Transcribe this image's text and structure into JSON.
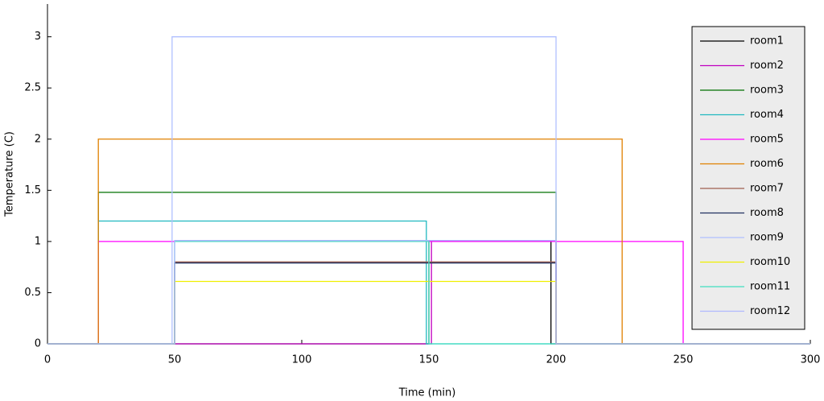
{
  "chart_data": {
    "type": "line",
    "xlabel": "Time (min)",
    "ylabel": "Temperature (C)",
    "xlim": [
      0,
      300
    ],
    "ylim": [
      0,
      3.32
    ],
    "xticks": [
      0,
      50,
      100,
      150,
      200,
      250,
      300
    ],
    "yticks": [
      0,
      0.5,
      1,
      1.5,
      2,
      2.5,
      3
    ],
    "grid": false,
    "legend": "upper right",
    "series": [
      {
        "name": "room1",
        "color": "#000000",
        "x": [
          0,
          150,
          150,
          198,
          198,
          300
        ],
        "values": [
          0,
          0,
          1,
          1,
          0,
          0
        ]
      },
      {
        "name": "room2",
        "color": "#c000c0",
        "x": [
          0,
          151,
          151,
          200,
          200,
          300
        ],
        "values": [
          0,
          0,
          1,
          1,
          0,
          0
        ]
      },
      {
        "name": "room3",
        "color": "#007000",
        "x": [
          0,
          20,
          20,
          200,
          200,
          300
        ],
        "values": [
          0,
          0,
          1.48,
          1.48,
          0,
          0
        ]
      },
      {
        "name": "room4",
        "color": "#20b8c0",
        "x": [
          0,
          20,
          20,
          149,
          149,
          300
        ],
        "values": [
          0,
          0,
          1.2,
          1.2,
          0,
          0
        ]
      },
      {
        "name": "room5",
        "color": "#ff00ff",
        "x": [
          0,
          20,
          20,
          250,
          250,
          300
        ],
        "values": [
          0,
          0,
          1,
          1,
          0,
          0
        ]
      },
      {
        "name": "room6",
        "color": "#e08000",
        "x": [
          0,
          20,
          20,
          226,
          226,
          300
        ],
        "values": [
          0,
          0,
          2,
          2,
          0,
          0
        ]
      },
      {
        "name": "room7",
        "color": "#a06050",
        "x": [
          0,
          50,
          50,
          200,
          200,
          300
        ],
        "values": [
          0,
          0,
          0.8,
          0.8,
          0,
          0
        ]
      },
      {
        "name": "room8",
        "color": "#203060",
        "x": [
          0,
          50,
          50,
          200,
          200,
          300
        ],
        "values": [
          0,
          0,
          0.79,
          0.79,
          0,
          0
        ]
      },
      {
        "name": "room9",
        "color": "#b0c0ff",
        "x": [
          0,
          49,
          49,
          200,
          200,
          300
        ],
        "values": [
          0,
          0,
          3,
          3,
          0,
          0
        ]
      },
      {
        "name": "room10",
        "color": "#f0f000",
        "x": [
          0,
          50,
          50,
          200,
          200,
          300
        ],
        "values": [
          0,
          0,
          0.61,
          0.61,
          0,
          0
        ]
      },
      {
        "name": "room11",
        "color": "#40e0c0",
        "x": [
          0,
          50,
          50,
          150,
          150,
          300
        ],
        "values": [
          0,
          0,
          1,
          1,
          0,
          0
        ]
      },
      {
        "name": "room12",
        "color": "#b0b8ff",
        "x": [
          0,
          50,
          50,
          200,
          200,
          300
        ],
        "values": [
          0,
          0,
          1.01,
          1.01,
          0,
          0
        ]
      }
    ]
  }
}
